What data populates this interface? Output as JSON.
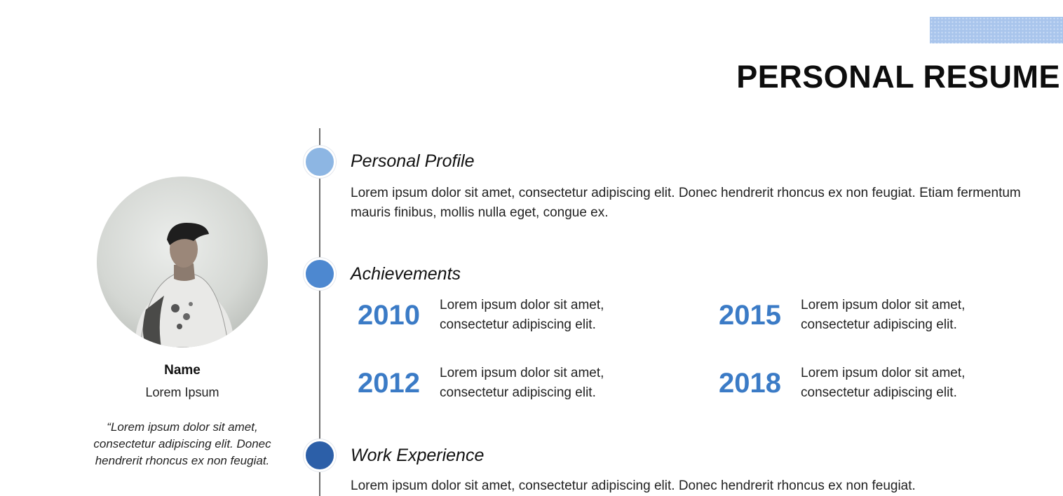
{
  "header": {
    "title": "PERSONAL RESUME"
  },
  "profile": {
    "name": "Name",
    "subtitle": "Lorem Ipsum",
    "quote": "“Lorem ipsum dolor sit amet, consectetur adipiscing elit. Donec hendrerit rhoncus ex non feugiat."
  },
  "colors": {
    "dot_profile": "#8db6e3",
    "dot_achievements": "#4d88d0",
    "dot_work": "#2c5fa8",
    "year_accent": "#3b7bc6"
  },
  "sections": {
    "personal_profile": {
      "title": "Personal Profile",
      "text": "Lorem ipsum dolor sit amet, consectetur adipiscing elit. Donec hendrerit rhoncus ex non feugiat. Etiam fermentum mauris finibus, mollis nulla eget, congue ex."
    },
    "achievements": {
      "title": "Achievements",
      "items": [
        {
          "year": "2010",
          "text": "Lorem ipsum dolor sit amet, consectetur adipiscing elit."
        },
        {
          "year": "2015",
          "text": "Lorem ipsum dolor sit amet, consectetur adipiscing elit."
        },
        {
          "year": "2012",
          "text": "Lorem ipsum dolor sit amet, consectetur adipiscing elit."
        },
        {
          "year": "2018",
          "text": "Lorem ipsum dolor sit amet, consectetur adipiscing elit."
        }
      ]
    },
    "work_experience": {
      "title": "Work Experience",
      "text": "Lorem ipsum dolor sit amet, consectetur adipiscing elit. Donec hendrerit rhoncus ex non feugiat."
    }
  }
}
